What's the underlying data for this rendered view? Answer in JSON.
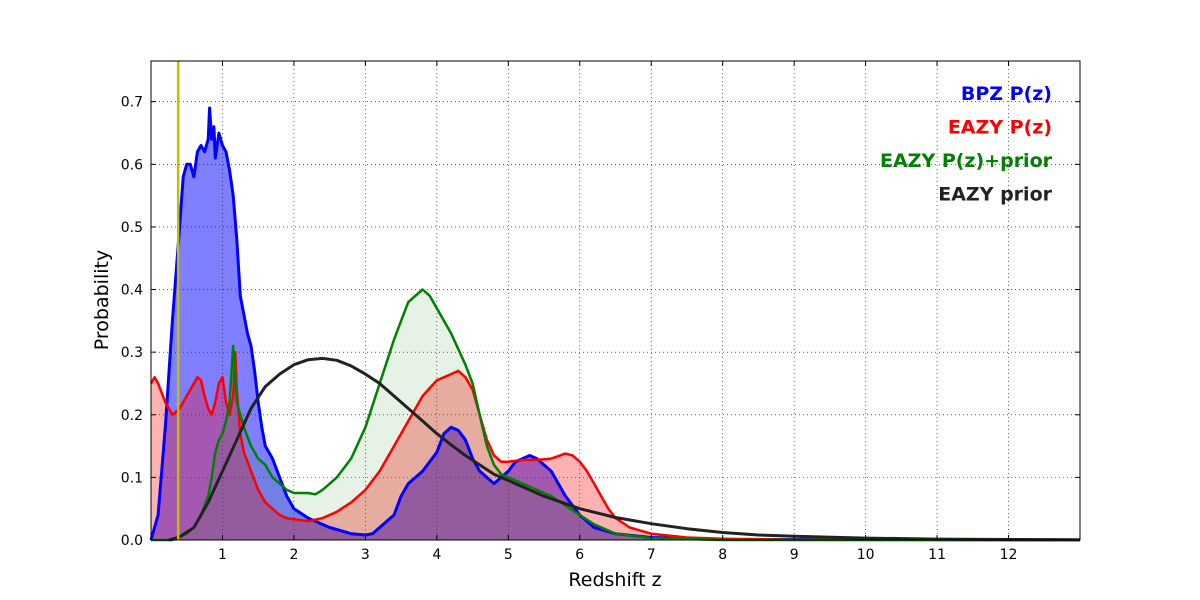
{
  "chart_data": {
    "type": "area",
    "xlabel": "Redshift z",
    "ylabel": "Probability",
    "xlim": [
      0,
      13
    ],
    "ylim": [
      0,
      0.765
    ],
    "grid": true,
    "legend_position": "top-right",
    "xticks": [
      {
        "value": 1,
        "label": "1"
      },
      {
        "value": 2,
        "label": "2"
      },
      {
        "value": 3,
        "label": "3"
      },
      {
        "value": 4,
        "label": "4"
      },
      {
        "value": 5,
        "label": "5"
      },
      {
        "value": 6,
        "label": "6"
      },
      {
        "value": 7,
        "label": "7"
      },
      {
        "value": 8,
        "label": "8"
      },
      {
        "value": 9,
        "label": "9"
      },
      {
        "value": 10,
        "label": "10"
      },
      {
        "value": 11,
        "label": "11"
      },
      {
        "value": 12,
        "label": "12"
      }
    ],
    "yticks": [
      {
        "value": 0.0,
        "label": "0.0"
      },
      {
        "value": 0.1,
        "label": "0.1"
      },
      {
        "value": 0.2,
        "label": "0.2"
      },
      {
        "value": 0.3,
        "label": "0.3"
      },
      {
        "value": 0.4,
        "label": "0.4"
      },
      {
        "value": 0.5,
        "label": "0.5"
      },
      {
        "value": 0.6,
        "label": "0.6"
      },
      {
        "value": 0.7,
        "label": "0.7"
      }
    ],
    "marker_line": {
      "x": 0.38,
      "color": "#bfbf00"
    },
    "series": [
      {
        "name": "BPZ P(z)",
        "color": "#0000ff",
        "fill": "#0000ff",
        "fill_opacity": 0.5,
        "stroke_width": 3,
        "points": [
          [
            0,
            0
          ],
          [
            0.1,
            0.04
          ],
          [
            0.2,
            0.18
          ],
          [
            0.3,
            0.35
          ],
          [
            0.4,
            0.5
          ],
          [
            0.45,
            0.58
          ],
          [
            0.5,
            0.6
          ],
          [
            0.55,
            0.6
          ],
          [
            0.6,
            0.58
          ],
          [
            0.65,
            0.62
          ],
          [
            0.7,
            0.63
          ],
          [
            0.75,
            0.62
          ],
          [
            0.8,
            0.64
          ],
          [
            0.82,
            0.69
          ],
          [
            0.85,
            0.64
          ],
          [
            0.88,
            0.66
          ],
          [
            0.9,
            0.61
          ],
          [
            0.95,
            0.65
          ],
          [
            1.0,
            0.63
          ],
          [
            1.05,
            0.62
          ],
          [
            1.1,
            0.59
          ],
          [
            1.15,
            0.55
          ],
          [
            1.2,
            0.48
          ],
          [
            1.25,
            0.39
          ],
          [
            1.3,
            0.36
          ],
          [
            1.35,
            0.33
          ],
          [
            1.4,
            0.31
          ],
          [
            1.45,
            0.27
          ],
          [
            1.5,
            0.22
          ],
          [
            1.55,
            0.18
          ],
          [
            1.6,
            0.15
          ],
          [
            1.65,
            0.14
          ],
          [
            1.7,
            0.13
          ],
          [
            1.8,
            0.1
          ],
          [
            1.9,
            0.07
          ],
          [
            2.0,
            0.05
          ],
          [
            2.2,
            0.035
          ],
          [
            2.5,
            0.02
          ],
          [
            2.8,
            0.01
          ],
          [
            3.0,
            0.008
          ],
          [
            3.1,
            0.01
          ],
          [
            3.2,
            0.02
          ],
          [
            3.3,
            0.03
          ],
          [
            3.4,
            0.04
          ],
          [
            3.5,
            0.07
          ],
          [
            3.55,
            0.08
          ],
          [
            3.6,
            0.09
          ],
          [
            3.8,
            0.11
          ],
          [
            4.0,
            0.14
          ],
          [
            4.1,
            0.17
          ],
          [
            4.2,
            0.18
          ],
          [
            4.3,
            0.175
          ],
          [
            4.4,
            0.16
          ],
          [
            4.5,
            0.13
          ],
          [
            4.6,
            0.11
          ],
          [
            4.7,
            0.1
          ],
          [
            4.8,
            0.09
          ],
          [
            4.9,
            0.1
          ],
          [
            5.0,
            0.11
          ],
          [
            5.1,
            0.125
          ],
          [
            5.2,
            0.13
          ],
          [
            5.3,
            0.135
          ],
          [
            5.4,
            0.13
          ],
          [
            5.5,
            0.12
          ],
          [
            5.6,
            0.11
          ],
          [
            5.8,
            0.07
          ],
          [
            6.0,
            0.04
          ],
          [
            6.2,
            0.02
          ],
          [
            6.5,
            0.01
          ],
          [
            7.0,
            0.004
          ],
          [
            8.0,
            0.001
          ],
          [
            13,
            0
          ]
        ]
      },
      {
        "name": "EAZY P(z)",
        "color": "#ff0000",
        "fill": "#ff0000",
        "fill_opacity": 0.3,
        "stroke_width": 2.5,
        "points": [
          [
            0,
            0.25
          ],
          [
            0.05,
            0.26
          ],
          [
            0.1,
            0.25
          ],
          [
            0.2,
            0.22
          ],
          [
            0.3,
            0.2
          ],
          [
            0.4,
            0.21
          ],
          [
            0.5,
            0.23
          ],
          [
            0.55,
            0.24
          ],
          [
            0.6,
            0.25
          ],
          [
            0.65,
            0.26
          ],
          [
            0.7,
            0.255
          ],
          [
            0.75,
            0.23
          ],
          [
            0.8,
            0.21
          ],
          [
            0.85,
            0.2
          ],
          [
            0.9,
            0.22
          ],
          [
            0.95,
            0.25
          ],
          [
            1.0,
            0.26
          ],
          [
            1.05,
            0.22
          ],
          [
            1.1,
            0.2
          ],
          [
            1.15,
            0.23
          ],
          [
            1.18,
            0.3
          ],
          [
            1.2,
            0.24
          ],
          [
            1.25,
            0.17
          ],
          [
            1.3,
            0.14
          ],
          [
            1.4,
            0.11
          ],
          [
            1.5,
            0.08
          ],
          [
            1.6,
            0.06
          ],
          [
            1.7,
            0.05
          ],
          [
            1.8,
            0.04
          ],
          [
            1.9,
            0.035
          ],
          [
            2.0,
            0.033
          ],
          [
            2.2,
            0.03
          ],
          [
            2.4,
            0.035
          ],
          [
            2.6,
            0.045
          ],
          [
            2.8,
            0.06
          ],
          [
            3.0,
            0.08
          ],
          [
            3.2,
            0.11
          ],
          [
            3.4,
            0.15
          ],
          [
            3.6,
            0.19
          ],
          [
            3.8,
            0.23
          ],
          [
            4.0,
            0.255
          ],
          [
            4.2,
            0.265
          ],
          [
            4.3,
            0.27
          ],
          [
            4.4,
            0.26
          ],
          [
            4.5,
            0.24
          ],
          [
            4.6,
            0.2
          ],
          [
            4.7,
            0.16
          ],
          [
            4.8,
            0.135
          ],
          [
            4.9,
            0.125
          ],
          [
            5.0,
            0.125
          ],
          [
            5.2,
            0.128
          ],
          [
            5.4,
            0.128
          ],
          [
            5.6,
            0.13
          ],
          [
            5.8,
            0.138
          ],
          [
            5.9,
            0.135
          ],
          [
            6.0,
            0.125
          ],
          [
            6.1,
            0.11
          ],
          [
            6.2,
            0.09
          ],
          [
            6.3,
            0.07
          ],
          [
            6.4,
            0.05
          ],
          [
            6.5,
            0.035
          ],
          [
            6.7,
            0.02
          ],
          [
            7.0,
            0.01
          ],
          [
            7.5,
            0.004
          ],
          [
            8.0,
            0.002
          ],
          [
            9.0,
            0.0005
          ],
          [
            13,
            0
          ]
        ]
      },
      {
        "name": "EAZY P(z)+prior",
        "color": "#008000",
        "fill": "#008000",
        "fill_opacity": 0.1,
        "stroke_width": 2.5,
        "points": [
          [
            0,
            0
          ],
          [
            0.3,
            0.0
          ],
          [
            0.5,
            0.01
          ],
          [
            0.6,
            0.02
          ],
          [
            0.7,
            0.04
          ],
          [
            0.8,
            0.07
          ],
          [
            0.85,
            0.1
          ],
          [
            0.9,
            0.14
          ],
          [
            0.95,
            0.16
          ],
          [
            1.0,
            0.17
          ],
          [
            1.05,
            0.19
          ],
          [
            1.1,
            0.22
          ],
          [
            1.15,
            0.31
          ],
          [
            1.2,
            0.22
          ],
          [
            1.3,
            0.18
          ],
          [
            1.4,
            0.15
          ],
          [
            1.5,
            0.13
          ],
          [
            1.6,
            0.12
          ],
          [
            1.7,
            0.1
          ],
          [
            1.8,
            0.09
          ],
          [
            1.9,
            0.08
          ],
          [
            2.0,
            0.075
          ],
          [
            2.2,
            0.075
          ],
          [
            2.3,
            0.073
          ],
          [
            2.4,
            0.08
          ],
          [
            2.6,
            0.1
          ],
          [
            2.8,
            0.13
          ],
          [
            3.0,
            0.18
          ],
          [
            3.2,
            0.25
          ],
          [
            3.4,
            0.32
          ],
          [
            3.5,
            0.35
          ],
          [
            3.6,
            0.38
          ],
          [
            3.7,
            0.39
          ],
          [
            3.8,
            0.4
          ],
          [
            3.9,
            0.39
          ],
          [
            4.0,
            0.37
          ],
          [
            4.2,
            0.33
          ],
          [
            4.4,
            0.28
          ],
          [
            4.5,
            0.25
          ],
          [
            4.6,
            0.2
          ],
          [
            4.7,
            0.15
          ],
          [
            4.8,
            0.12
          ],
          [
            4.9,
            0.105
          ],
          [
            5.0,
            0.1
          ],
          [
            5.2,
            0.09
          ],
          [
            5.4,
            0.08
          ],
          [
            5.6,
            0.07
          ],
          [
            5.8,
            0.055
          ],
          [
            6.0,
            0.04
          ],
          [
            6.2,
            0.025
          ],
          [
            6.5,
            0.01
          ],
          [
            7.0,
            0.003
          ],
          [
            8.0,
            0.0
          ],
          [
            13,
            0
          ]
        ]
      },
      {
        "name": "EAZY prior",
        "color": "#222222",
        "fill": "none",
        "fill_opacity": 0,
        "stroke_width": 3,
        "points": [
          [
            0.25,
            0
          ],
          [
            0.4,
            0.005
          ],
          [
            0.6,
            0.02
          ],
          [
            0.8,
            0.06
          ],
          [
            1.0,
            0.11
          ],
          [
            1.2,
            0.16
          ],
          [
            1.4,
            0.21
          ],
          [
            1.6,
            0.245
          ],
          [
            1.8,
            0.265
          ],
          [
            2.0,
            0.28
          ],
          [
            2.2,
            0.288
          ],
          [
            2.4,
            0.29
          ],
          [
            2.6,
            0.287
          ],
          [
            2.8,
            0.278
          ],
          [
            3.0,
            0.265
          ],
          [
            3.2,
            0.25
          ],
          [
            3.4,
            0.23
          ],
          [
            3.6,
            0.21
          ],
          [
            3.8,
            0.19
          ],
          [
            4.0,
            0.17
          ],
          [
            4.2,
            0.152
          ],
          [
            4.4,
            0.135
          ],
          [
            4.6,
            0.12
          ],
          [
            4.8,
            0.105
          ],
          [
            5.0,
            0.095
          ],
          [
            5.5,
            0.07
          ],
          [
            6.0,
            0.05
          ],
          [
            6.5,
            0.036
          ],
          [
            7.0,
            0.026
          ],
          [
            7.5,
            0.018
          ],
          [
            8.0,
            0.012
          ],
          [
            8.5,
            0.008
          ],
          [
            9.0,
            0.006
          ],
          [
            10.0,
            0.003
          ],
          [
            11.0,
            0.0015
          ],
          [
            12.0,
            0.0008
          ],
          [
            13.0,
            0.0003
          ]
        ]
      }
    ]
  }
}
